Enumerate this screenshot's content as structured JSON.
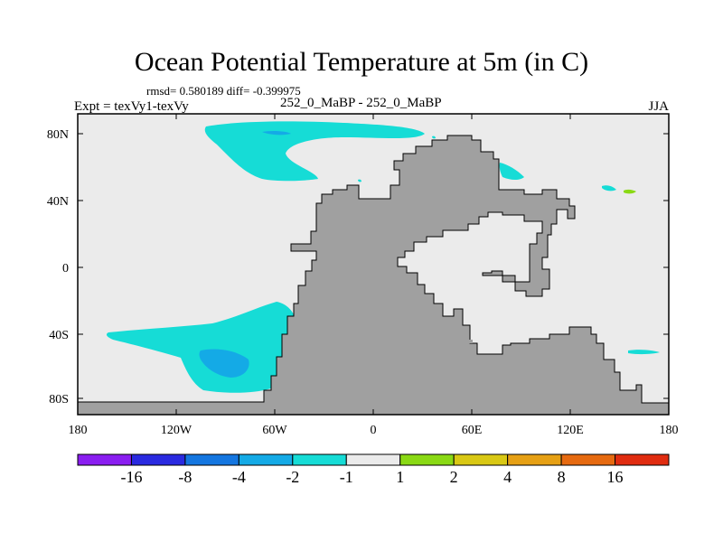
{
  "title": "Ocean Potential Temperature at 5m (in C)",
  "stats": "rmsd= 0.580189 diff= -0.399975",
  "left_label": "Expt = texVy1-texVy",
  "center_label": "252_0_MaBP - 252_0_MaBP",
  "right_label": "JJA",
  "axes": {
    "x_ticks": [
      "180",
      "120W",
      "60W",
      "0",
      "60E",
      "120E",
      "180"
    ],
    "y_ticks": [
      "80N",
      "40N",
      "0",
      "40S",
      "80S"
    ]
  },
  "colorbar": {
    "labels": [
      "-16",
      "-8",
      "-4",
      "-2",
      "-1",
      "1",
      "2",
      "4",
      "8",
      "16"
    ],
    "colors": [
      "#8a1ef0",
      "#2a2ae0",
      "#1476e0",
      "#14aae6",
      "#16dcd6",
      "#ebebeb",
      "#8ad914",
      "#d9c814",
      "#e6a014",
      "#e66a10",
      "#e02c10"
    ]
  },
  "colors": {
    "land": "#a0a0a0",
    "ocean_neutral": "#ebebeb",
    "cyan": "#16dcd6",
    "light_blue": "#14aae6",
    "green": "#8ad914"
  }
}
